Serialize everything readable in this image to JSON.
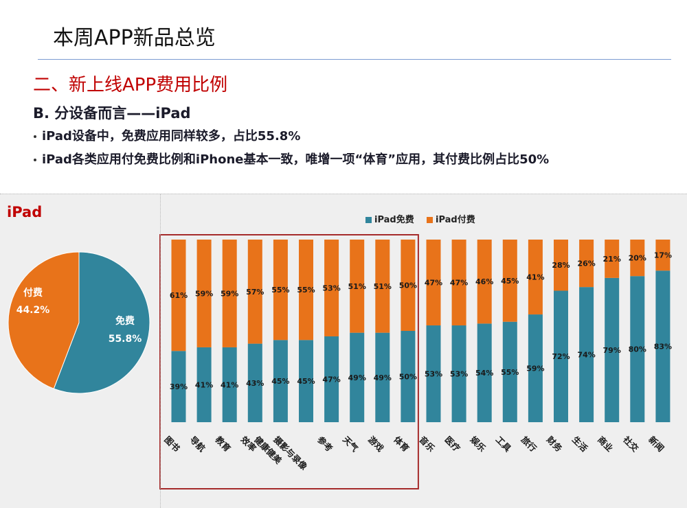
{
  "slide": {
    "title": "本周APP新品总览",
    "section_heading": "二、新上线APP费用比例",
    "subheading": "B. 分设备而言——iPad",
    "bullets": [
      "iPad设备中，免费应用同样较多，占比55.8%",
      "iPad各类应用付免费比例和iPhone基本一致，唯增一项“体育”应用，其付费比例占比50%"
    ]
  },
  "colors": {
    "title_rule": "#7b9bd2",
    "heading": "#c00000",
    "highlight_box": "#a52a2a"
  },
  "chart_data": [
    {
      "type": "pie",
      "title": "iPad",
      "slices": [
        {
          "label": "免费",
          "value": 55.8,
          "color": "#31859c"
        },
        {
          "label": "付费",
          "value": 44.2,
          "color": "#e8731a"
        }
      ]
    },
    {
      "type": "bar",
      "stacked": true,
      "ylim": [
        0,
        100
      ],
      "legend": "top",
      "grid": false,
      "categories": [
        "图书",
        "导航",
        "教育",
        "效率",
        "健康健美",
        "摄影与录像",
        "参考",
        "天气",
        "游戏",
        "体育",
        "音乐",
        "医疗",
        "娱乐",
        "工具",
        "旅行",
        "财务",
        "生活",
        "商业",
        "社交",
        "新闻"
      ],
      "series": [
        {
          "name": "iPad免费",
          "color": "#31859c",
          "values": [
            39,
            41,
            41,
            43,
            45,
            45,
            47,
            49,
            49,
            50,
            53,
            53,
            54,
            55,
            59,
            72,
            74,
            79,
            80,
            83
          ]
        },
        {
          "name": "iPad付费",
          "color": "#e8731a",
          "values": [
            61,
            59,
            59,
            57,
            55,
            55,
            53,
            51,
            51,
            50,
            47,
            47,
            46,
            45,
            41,
            28,
            26,
            21,
            20,
            17
          ]
        }
      ]
    }
  ]
}
